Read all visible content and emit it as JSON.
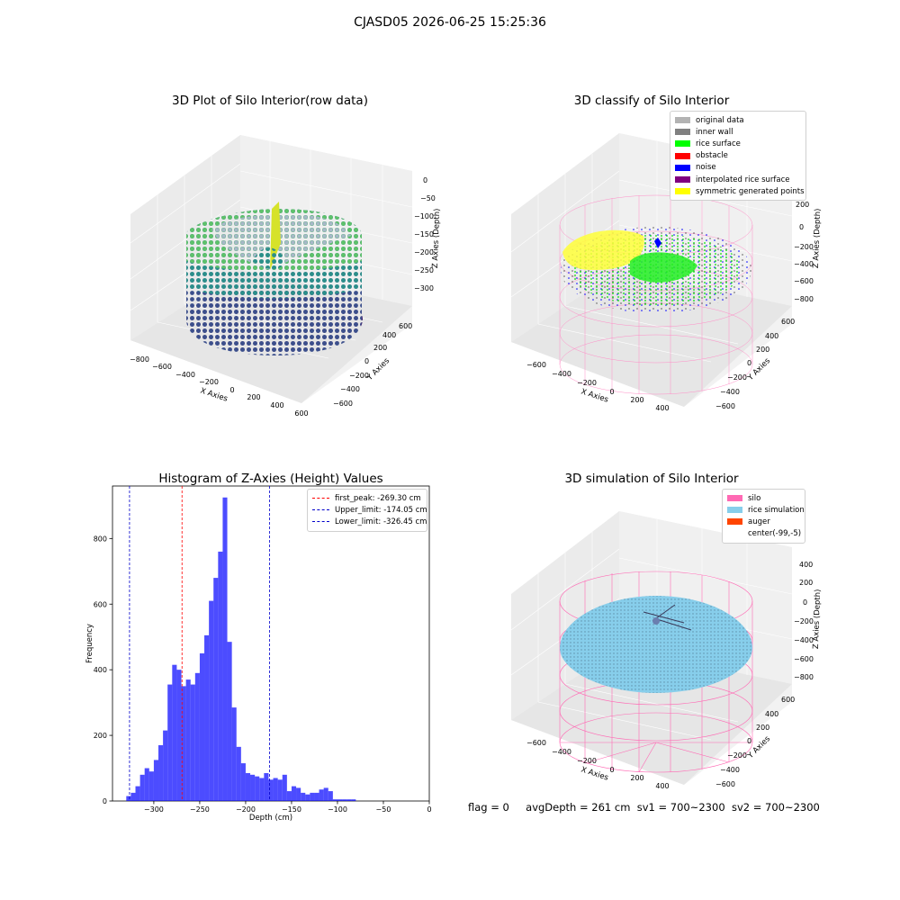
{
  "suptitle": "CJASD05 2026-06-25 15:25:36",
  "panels": {
    "raw": {
      "title": "3D Plot of Silo Interior(row data)",
      "xlabel": "X Axies",
      "ylabel": "Y Axies",
      "zlabel": "Z Axies (Depth)",
      "xticks": [
        "−800",
        "−600",
        "−400",
        "−200",
        "0",
        "200",
        "400",
        "600"
      ],
      "yticks": [
        "−600",
        "−400",
        "−200",
        "0",
        "200",
        "400",
        "600"
      ],
      "zticks": [
        "0",
        "−50",
        "−100",
        "−150",
        "−200",
        "−250",
        "−300"
      ]
    },
    "classify": {
      "title": "3D classify of Silo Interior",
      "xlabel": "X Axies",
      "ylabel": "Y Axies",
      "zlabel": "Z Axies (Depth)",
      "xticks": [
        "−600",
        "−400",
        "−200",
        "0",
        "200",
        "400"
      ],
      "yticks": [
        "−600",
        "−400",
        "−200",
        "0",
        "200",
        "400",
        "600"
      ],
      "zticks": [
        "200",
        "0",
        "−200",
        "−400",
        "−600",
        "−800"
      ],
      "legend": [
        {
          "label": "original data",
          "color": "#b3b3b3"
        },
        {
          "label": "inner wall",
          "color": "#808080"
        },
        {
          "label": "rice surface",
          "color": "#00ff00"
        },
        {
          "label": "obstacle",
          "color": "#ff0000"
        },
        {
          "label": "noise",
          "color": "#0000ff"
        },
        {
          "label": "interpolated rice surface",
          "color": "#800080"
        },
        {
          "label": "symmetric generated points",
          "color": "#ffff00"
        }
      ]
    },
    "simulation": {
      "title": "3D simulation of Silo Interior",
      "xlabel": "X Axies",
      "ylabel": "Y Axies",
      "zlabel": "Z Axies (Depth)",
      "xticks": [
        "−600",
        "−400",
        "−200",
        "0",
        "200",
        "400"
      ],
      "yticks": [
        "−600",
        "−400",
        "−200",
        "0",
        "200",
        "400",
        "600"
      ],
      "zticks": [
        "400",
        "200",
        "0",
        "−200",
        "−400",
        "−600",
        "−800"
      ],
      "legend": [
        {
          "label": "silo",
          "color": "#ff69b4"
        },
        {
          "label": "rice simulation",
          "color": "#87ceeb"
        },
        {
          "label": "auger",
          "color": "#ff4500"
        },
        {
          "label": "center(-99,-5)",
          "color": "#ffffff"
        }
      ]
    }
  },
  "chart_data": {
    "type": "bar",
    "title": "Histogram of Z-Axies (Height) Values",
    "xlabel": "Depth (cm)",
    "ylabel": "Frequency",
    "xlim": [
      -345,
      0
    ],
    "ylim": [
      0,
      960
    ],
    "xticks": [
      -300,
      -250,
      -200,
      -150,
      -100,
      -50,
      0
    ],
    "xtick_labels": [
      "−300",
      "−250",
      "−200",
      "−150",
      "−100",
      "−50",
      "0"
    ],
    "yticks": [
      0,
      200,
      400,
      600,
      800
    ],
    "bar_color": "#0000ff",
    "bin_width": 5,
    "bin_start": -330,
    "values": [
      15,
      25,
      45,
      80,
      100,
      90,
      125,
      170,
      215,
      355,
      415,
      400,
      350,
      370,
      355,
      390,
      450,
      505,
      610,
      680,
      760,
      925,
      485,
      285,
      165,
      115,
      85,
      80,
      75,
      70,
      85,
      65,
      70,
      65,
      80,
      30,
      45,
      40,
      25,
      20,
      25,
      25,
      35,
      40,
      30,
      5,
      5,
      5,
      5,
      5
    ],
    "vlines": [
      {
        "label": "first_peak: -269.30 cm",
        "x": -269.3,
        "color": "#ff0000"
      },
      {
        "label": "Upper_limit: -174.05 cm",
        "x": -174.05,
        "color": "#0000cc"
      },
      {
        "label": "Lower_limit: -326.45 cm",
        "x": -326.45,
        "color": "#0000cc"
      }
    ]
  },
  "footer": {
    "flag": "flag = 0",
    "avg": "avgDepth = 261 cm",
    "sv1": "sv1 = 700~2300",
    "sv2": "sv2 = 700~2300"
  }
}
